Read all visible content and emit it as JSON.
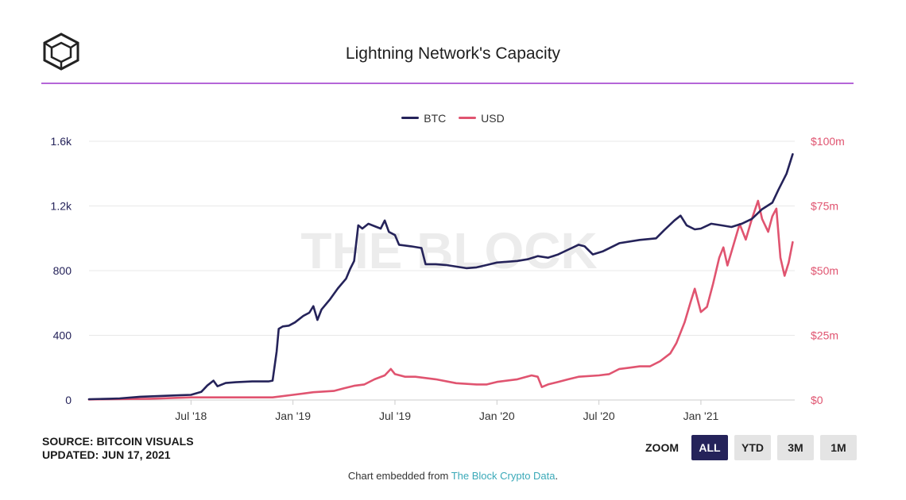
{
  "header": {
    "title": "Lightning Network's Capacity"
  },
  "legend": [
    {
      "label": "BTC",
      "color": "#25235a"
    },
    {
      "label": "USD",
      "color": "#e05470"
    }
  ],
  "footer": {
    "source": "SOURCE: BITCOIN VISUALS",
    "updated": "UPDATED: JUN 17, 2021",
    "embed_prefix": "Chart embedded from ",
    "embed_link": "The Block Crypto Data",
    "embed_suffix": "."
  },
  "zoom": {
    "label": "ZOOM",
    "buttons": [
      "ALL",
      "YTD",
      "3M",
      "1M"
    ],
    "active": "ALL"
  },
  "watermark": "THE BLOCK",
  "chart_data": {
    "type": "line",
    "title": "Lightning Network's Capacity",
    "x_range": [
      2018.0,
      2021.46
    ],
    "x_ticks": [
      {
        "label": "Jul '18",
        "t": 2018.5
      },
      {
        "label": "Jan '19",
        "t": 2019.0
      },
      {
        "label": "Jul '19",
        "t": 2019.5
      },
      {
        "label": "Jan '20",
        "t": 2020.0
      },
      {
        "label": "Jul '20",
        "t": 2020.5
      },
      {
        "label": "Jan '21",
        "t": 2021.0
      }
    ],
    "y_left": {
      "label": "BTC",
      "ylim": [
        0,
        1600
      ],
      "ticks": [
        0,
        400,
        800,
        1200,
        1600
      ],
      "tick_labels": [
        "0",
        "400",
        "800",
        "1.2k",
        "1.6k"
      ]
    },
    "y_right": {
      "label": "USD",
      "ylim": [
        0,
        100000000
      ],
      "ticks": [
        0,
        25000000,
        50000000,
        75000000,
        100000000
      ],
      "tick_labels": [
        "$0",
        "$25m",
        "$50m",
        "$75m",
        "$100m"
      ]
    },
    "series": [
      {
        "name": "BTC",
        "axis": "left",
        "color": "#25235a",
        "points": [
          [
            2018.0,
            5
          ],
          [
            2018.1,
            8
          ],
          [
            2018.15,
            10
          ],
          [
            2018.25,
            20
          ],
          [
            2018.35,
            25
          ],
          [
            2018.45,
            30
          ],
          [
            2018.5,
            32
          ],
          [
            2018.55,
            50
          ],
          [
            2018.58,
            90
          ],
          [
            2018.61,
            120
          ],
          [
            2018.63,
            85
          ],
          [
            2018.67,
            105
          ],
          [
            2018.72,
            110
          ],
          [
            2018.8,
            115
          ],
          [
            2018.88,
            115
          ],
          [
            2018.9,
            120
          ],
          [
            2018.92,
            300
          ],
          [
            2018.93,
            440
          ],
          [
            2018.95,
            455
          ],
          [
            2018.98,
            460
          ],
          [
            2019.01,
            480
          ],
          [
            2019.05,
            520
          ],
          [
            2019.08,
            540
          ],
          [
            2019.1,
            580
          ],
          [
            2019.12,
            495
          ],
          [
            2019.14,
            560
          ],
          [
            2019.18,
            620
          ],
          [
            2019.22,
            690
          ],
          [
            2019.26,
            750
          ],
          [
            2019.28,
            810
          ],
          [
            2019.3,
            860
          ],
          [
            2019.32,
            1080
          ],
          [
            2019.34,
            1060
          ],
          [
            2019.37,
            1090
          ],
          [
            2019.4,
            1075
          ],
          [
            2019.43,
            1060
          ],
          [
            2019.45,
            1110
          ],
          [
            2019.47,
            1040
          ],
          [
            2019.5,
            1020
          ],
          [
            2019.52,
            960
          ],
          [
            2019.58,
            950
          ],
          [
            2019.63,
            940
          ],
          [
            2019.65,
            840
          ],
          [
            2019.7,
            840
          ],
          [
            2019.75,
            835
          ],
          [
            2019.8,
            825
          ],
          [
            2019.85,
            815
          ],
          [
            2019.9,
            820
          ],
          [
            2019.95,
            835
          ],
          [
            2020.0,
            850
          ],
          [
            2020.1,
            860
          ],
          [
            2020.15,
            870
          ],
          [
            2020.2,
            890
          ],
          [
            2020.25,
            880
          ],
          [
            2020.3,
            900
          ],
          [
            2020.35,
            930
          ],
          [
            2020.4,
            960
          ],
          [
            2020.43,
            950
          ],
          [
            2020.47,
            900
          ],
          [
            2020.52,
            920
          ],
          [
            2020.6,
            970
          ],
          [
            2020.7,
            990
          ],
          [
            2020.78,
            1000
          ],
          [
            2020.82,
            1050
          ],
          [
            2020.87,
            1110
          ],
          [
            2020.9,
            1140
          ],
          [
            2020.93,
            1080
          ],
          [
            2020.97,
            1055
          ],
          [
            2021.0,
            1060
          ],
          [
            2021.05,
            1090
          ],
          [
            2021.1,
            1080
          ],
          [
            2021.15,
            1070
          ],
          [
            2021.2,
            1090
          ],
          [
            2021.25,
            1120
          ],
          [
            2021.3,
            1180
          ],
          [
            2021.35,
            1220
          ],
          [
            2021.38,
            1300
          ],
          [
            2021.42,
            1400
          ],
          [
            2021.45,
            1520
          ]
        ]
      },
      {
        "name": "USD",
        "axis": "right",
        "color": "#e05470",
        "points": [
          [
            2018.0,
            200000
          ],
          [
            2018.3,
            500000
          ],
          [
            2018.5,
            1000000
          ],
          [
            2018.75,
            1000000
          ],
          [
            2018.9,
            1000000
          ],
          [
            2019.0,
            2000000
          ],
          [
            2019.1,
            3000000
          ],
          [
            2019.2,
            3500000
          ],
          [
            2019.25,
            4500000
          ],
          [
            2019.3,
            5500000
          ],
          [
            2019.35,
            6000000
          ],
          [
            2019.4,
            8000000
          ],
          [
            2019.45,
            9500000
          ],
          [
            2019.48,
            12000000
          ],
          [
            2019.5,
            10000000
          ],
          [
            2019.55,
            9000000
          ],
          [
            2019.6,
            9000000
          ],
          [
            2019.7,
            8000000
          ],
          [
            2019.8,
            6500000
          ],
          [
            2019.9,
            6000000
          ],
          [
            2019.95,
            6000000
          ],
          [
            2020.0,
            7000000
          ],
          [
            2020.1,
            8000000
          ],
          [
            2020.17,
            9500000
          ],
          [
            2020.2,
            9000000
          ],
          [
            2020.22,
            5000000
          ],
          [
            2020.25,
            6000000
          ],
          [
            2020.3,
            7000000
          ],
          [
            2020.35,
            8000000
          ],
          [
            2020.4,
            9000000
          ],
          [
            2020.5,
            9500000
          ],
          [
            2020.55,
            10000000
          ],
          [
            2020.6,
            12000000
          ],
          [
            2020.65,
            12500000
          ],
          [
            2020.7,
            13000000
          ],
          [
            2020.75,
            13000000
          ],
          [
            2020.8,
            15000000
          ],
          [
            2020.85,
            18000000
          ],
          [
            2020.88,
            22000000
          ],
          [
            2020.92,
            30000000
          ],
          [
            2020.95,
            38000000
          ],
          [
            2020.97,
            43000000
          ],
          [
            2021.0,
            34000000
          ],
          [
            2021.03,
            36000000
          ],
          [
            2021.06,
            45000000
          ],
          [
            2021.09,
            55000000
          ],
          [
            2021.11,
            59000000
          ],
          [
            2021.13,
            52000000
          ],
          [
            2021.16,
            60000000
          ],
          [
            2021.19,
            68000000
          ],
          [
            2021.22,
            62000000
          ],
          [
            2021.25,
            70000000
          ],
          [
            2021.28,
            77000000
          ],
          [
            2021.3,
            70000000
          ],
          [
            2021.33,
            65000000
          ],
          [
            2021.35,
            71000000
          ],
          [
            2021.37,
            74000000
          ],
          [
            2021.39,
            55000000
          ],
          [
            2021.41,
            48000000
          ],
          [
            2021.43,
            53000000
          ],
          [
            2021.45,
            61000000
          ]
        ]
      }
    ]
  }
}
